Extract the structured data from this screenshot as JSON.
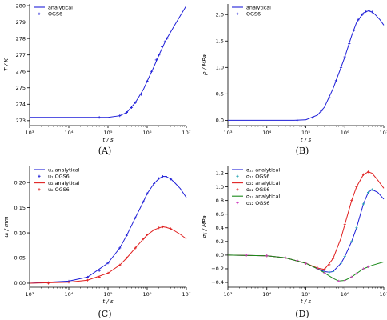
{
  "captions": [
    "(A)",
    "(B)",
    "(C)",
    "(D)"
  ],
  "colors": {
    "blue": "#1f1fd8",
    "red": "#e02020",
    "green": "#1a8a1a",
    "teal": "#1aa0b0",
    "magenta": "#d040c0"
  },
  "chart_data": [
    {
      "type": "line",
      "xscale": "log",
      "xlabel": "t / s",
      "ylabel": "T / K",
      "xlim": [
        1000,
        10000000
      ],
      "ylim": [
        272.7,
        280.1
      ],
      "xticks": [
        1000,
        10000,
        100000,
        1000000,
        10000000
      ],
      "xticklabels": [
        "10³",
        "10⁴",
        "10⁵",
        "10⁶",
        "10⁷"
      ],
      "yticks": [
        273,
        274,
        275,
        276,
        277,
        278,
        279,
        280
      ],
      "yticklabels": [
        "273",
        "274",
        "275",
        "276",
        "277",
        "278",
        "279",
        "280"
      ],
      "grid": false,
      "legend_position": "top-left",
      "series": [
        {
          "name": "analytical",
          "style": "line",
          "color": "blue",
          "x": [
            1000,
            100000,
            200000,
            300000,
            500000,
            800000,
            1000000,
            1500000,
            2000000,
            3000000,
            5000000,
            10000000
          ],
          "y": [
            273.2,
            273.2,
            273.3,
            273.5,
            274.1,
            274.9,
            275.4,
            276.3,
            277.0,
            277.9,
            278.8,
            280.0
          ]
        },
        {
          "name": "OGS6",
          "style": "markers",
          "color": "blue",
          "x": [
            60000,
            200000,
            300000,
            400000,
            500000,
            700000,
            1000000,
            1300000,
            1700000,
            2000000,
            2400000,
            2800000,
            3200000
          ],
          "y": [
            273.2,
            273.3,
            273.5,
            273.8,
            274.1,
            274.6,
            275.4,
            276.0,
            276.7,
            277.0,
            277.5,
            277.8,
            278.0
          ]
        }
      ]
    },
    {
      "type": "line",
      "xscale": "log",
      "xlabel": "t / s",
      "ylabel": "p / MPa",
      "xlim": [
        1000,
        10000000
      ],
      "ylim": [
        -0.1,
        2.2
      ],
      "xticks": [
        1000,
        10000,
        100000,
        1000000,
        10000000
      ],
      "xticklabels": [
        "10³",
        "10⁴",
        "10⁵",
        "10⁶",
        "10⁷"
      ],
      "yticks": [
        0.0,
        0.5,
        1.0,
        1.5,
        2.0
      ],
      "yticklabels": [
        "0.0",
        "0.5",
        "1.0",
        "1.5",
        "2.0"
      ],
      "grid": false,
      "legend_position": "top-left",
      "series": [
        {
          "name": "analytical",
          "style": "line",
          "color": "blue",
          "x": [
            1000,
            50000,
            100000,
            200000,
            300000,
            500000,
            800000,
            1000000,
            1500000,
            2000000,
            3000000,
            4000000,
            5000000,
            6000000,
            8000000,
            10000000
          ],
          "y": [
            0.0,
            0.0,
            0.01,
            0.1,
            0.25,
            0.6,
            1.0,
            1.2,
            1.6,
            1.85,
            2.03,
            2.07,
            2.05,
            2.0,
            1.9,
            1.8
          ]
        },
        {
          "name": "OGS6",
          "style": "markers",
          "color": "blue",
          "x": [
            60000,
            150000,
            250000,
            400000,
            600000,
            800000,
            1000000,
            1300000,
            1700000,
            2200000,
            2800000,
            3500000,
            4200000,
            5000000
          ],
          "y": [
            0.0,
            0.05,
            0.18,
            0.43,
            0.75,
            1.0,
            1.2,
            1.45,
            1.7,
            1.9,
            2.0,
            2.06,
            2.07,
            2.05
          ]
        }
      ]
    },
    {
      "type": "line",
      "xscale": "log",
      "xlabel": "t / s",
      "ylabel": "uᵢ / mm",
      "xlim": [
        1000,
        10000000
      ],
      "ylim": [
        -0.008,
        0.232
      ],
      "xticks": [
        1000,
        10000,
        100000,
        1000000,
        10000000
      ],
      "xticklabels": [
        "10³",
        "10⁴",
        "10⁵",
        "10⁶",
        "10⁷"
      ],
      "yticks": [
        0.0,
        0.05,
        0.1,
        0.15,
        0.2
      ],
      "yticklabels": [
        "0.00",
        "0.05",
        "0.10",
        "0.15",
        "0.20"
      ],
      "grid": false,
      "legend_position": "top-left",
      "series": [
        {
          "name": "u₁ analytical",
          "style": "line",
          "color": "blue",
          "x": [
            1000,
            10000,
            30000,
            100000,
            200000,
            300000,
            500000,
            800000,
            1000000,
            1500000,
            2000000,
            2500000,
            3000000,
            4000000,
            5000000,
            7000000,
            10000000
          ],
          "y": [
            0.0,
            0.004,
            0.012,
            0.04,
            0.07,
            0.095,
            0.13,
            0.162,
            0.178,
            0.198,
            0.208,
            0.212,
            0.212,
            0.207,
            0.2,
            0.188,
            0.17
          ]
        },
        {
          "name": "u₁ OGS6",
          "style": "markers",
          "color": "blue",
          "x": [
            3000,
            10000,
            30000,
            60000,
            100000,
            200000,
            300000,
            500000,
            800000,
            1000000,
            1500000,
            2000000,
            2500000,
            3000000,
            4000000
          ],
          "y": [
            0.001,
            0.004,
            0.012,
            0.025,
            0.04,
            0.07,
            0.095,
            0.13,
            0.162,
            0.178,
            0.198,
            0.208,
            0.212,
            0.212,
            0.207
          ]
        },
        {
          "name": "u₂ analytical",
          "style": "line",
          "color": "red",
          "x": [
            1000,
            10000,
            30000,
            100000,
            200000,
            300000,
            500000,
            800000,
            1000000,
            1500000,
            2000000,
            2500000,
            3000000,
            4000000,
            5000000,
            7000000,
            10000000
          ],
          "y": [
            0.0,
            0.002,
            0.006,
            0.02,
            0.036,
            0.05,
            0.07,
            0.088,
            0.096,
            0.106,
            0.11,
            0.112,
            0.111,
            0.108,
            0.104,
            0.097,
            0.088
          ]
        },
        {
          "name": "u₂ OGS6",
          "style": "markers",
          "color": "red",
          "x": [
            3000,
            10000,
            30000,
            60000,
            100000,
            200000,
            300000,
            500000,
            800000,
            1000000,
            1500000,
            2000000,
            2500000,
            3000000,
            4000000
          ],
          "y": [
            0.0,
            0.002,
            0.006,
            0.012,
            0.02,
            0.036,
            0.05,
            0.07,
            0.088,
            0.096,
            0.106,
            0.11,
            0.112,
            0.111,
            0.108
          ]
        }
      ]
    },
    {
      "type": "line",
      "xscale": "log",
      "xlabel": "t / s",
      "ylabel": "σᵢⱼ / MPa",
      "xlim": [
        1000,
        10000000
      ],
      "ylim": [
        -0.47,
        1.3
      ],
      "xticks": [
        1000,
        10000,
        100000,
        1000000,
        10000000
      ],
      "xticklabels": [
        "10³",
        "10⁴",
        "10⁵",
        "10⁶",
        "10⁷"
      ],
      "yticks": [
        -0.4,
        -0.2,
        0.0,
        0.2,
        0.4,
        0.6,
        0.8,
        1.0,
        1.2
      ],
      "yticklabels": [
        "−0.4",
        "−0.2",
        "0.0",
        "0.2",
        "0.4",
        "0.6",
        "0.8",
        "1.0",
        "1.2"
      ],
      "grid": false,
      "legend_position": "top-left",
      "series": [
        {
          "name": "σ₁₁ analytical",
          "style": "line",
          "color": "blue",
          "x": [
            1000,
            10000,
            30000,
            100000,
            200000,
            300000,
            400000,
            500000,
            800000,
            1000000,
            1500000,
            2000000,
            3000000,
            4000000,
            5000000,
            7000000,
            10000000
          ],
          "y": [
            0.0,
            -0.01,
            -0.04,
            -0.12,
            -0.2,
            -0.24,
            -0.25,
            -0.24,
            -0.12,
            -0.02,
            0.2,
            0.4,
            0.75,
            0.92,
            0.96,
            0.92,
            0.82
          ]
        },
        {
          "name": "σ₁₁ OGS6",
          "style": "markers",
          "color": "teal",
          "x": [
            3000,
            10000,
            30000,
            60000,
            100000,
            200000,
            300000,
            400000,
            500000,
            800000,
            1000000,
            1500000,
            2000000,
            3000000,
            4000000,
            5000000
          ],
          "y": [
            0.0,
            -0.01,
            -0.04,
            -0.08,
            -0.12,
            -0.2,
            -0.24,
            -0.25,
            -0.24,
            -0.12,
            -0.02,
            0.2,
            0.4,
            0.75,
            0.92,
            0.96
          ]
        },
        {
          "name": "σ₂₂ analytical",
          "style": "line",
          "color": "red",
          "x": [
            1000,
            10000,
            30000,
            100000,
            200000,
            300000,
            500000,
            800000,
            1000000,
            1500000,
            2000000,
            3000000,
            4000000,
            5000000,
            7000000,
            10000000
          ],
          "y": [
            0.0,
            -0.01,
            -0.04,
            -0.12,
            -0.19,
            -0.21,
            -0.05,
            0.25,
            0.45,
            0.8,
            1.0,
            1.18,
            1.22,
            1.2,
            1.1,
            0.98
          ]
        },
        {
          "name": "σ₂₂ OGS6",
          "style": "markers",
          "color": "red",
          "x": [
            3000,
            10000,
            30000,
            60000,
            100000,
            200000,
            300000,
            400000,
            500000,
            800000,
            1000000,
            1500000,
            2000000,
            3000000,
            4000000
          ],
          "y": [
            0.0,
            -0.01,
            -0.04,
            -0.08,
            -0.12,
            -0.19,
            -0.21,
            -0.14,
            -0.05,
            0.25,
            0.45,
            0.8,
            1.0,
            1.18,
            1.22
          ]
        },
        {
          "name": "σ₁₂ analytical",
          "style": "line",
          "color": "green",
          "x": [
            1000,
            10000,
            30000,
            100000,
            200000,
            300000,
            500000,
            700000,
            1000000,
            1500000,
            2000000,
            3000000,
            5000000,
            10000000
          ],
          "y": [
            0.0,
            -0.01,
            -0.04,
            -0.12,
            -0.2,
            -0.26,
            -0.34,
            -0.38,
            -0.37,
            -0.32,
            -0.27,
            -0.2,
            -0.15,
            -0.1
          ]
        },
        {
          "name": "σ₁₂ OGS6",
          "style": "markers",
          "color": "magenta",
          "x": [
            3000,
            10000,
            30000,
            60000,
            100000,
            200000,
            300000,
            500000,
            700000,
            1000000,
            1500000,
            2000000,
            3000000,
            4000000
          ],
          "y": [
            0.0,
            -0.01,
            -0.04,
            -0.08,
            -0.12,
            -0.2,
            -0.26,
            -0.34,
            -0.38,
            -0.37,
            -0.32,
            -0.27,
            -0.2,
            -0.17
          ]
        }
      ]
    }
  ]
}
